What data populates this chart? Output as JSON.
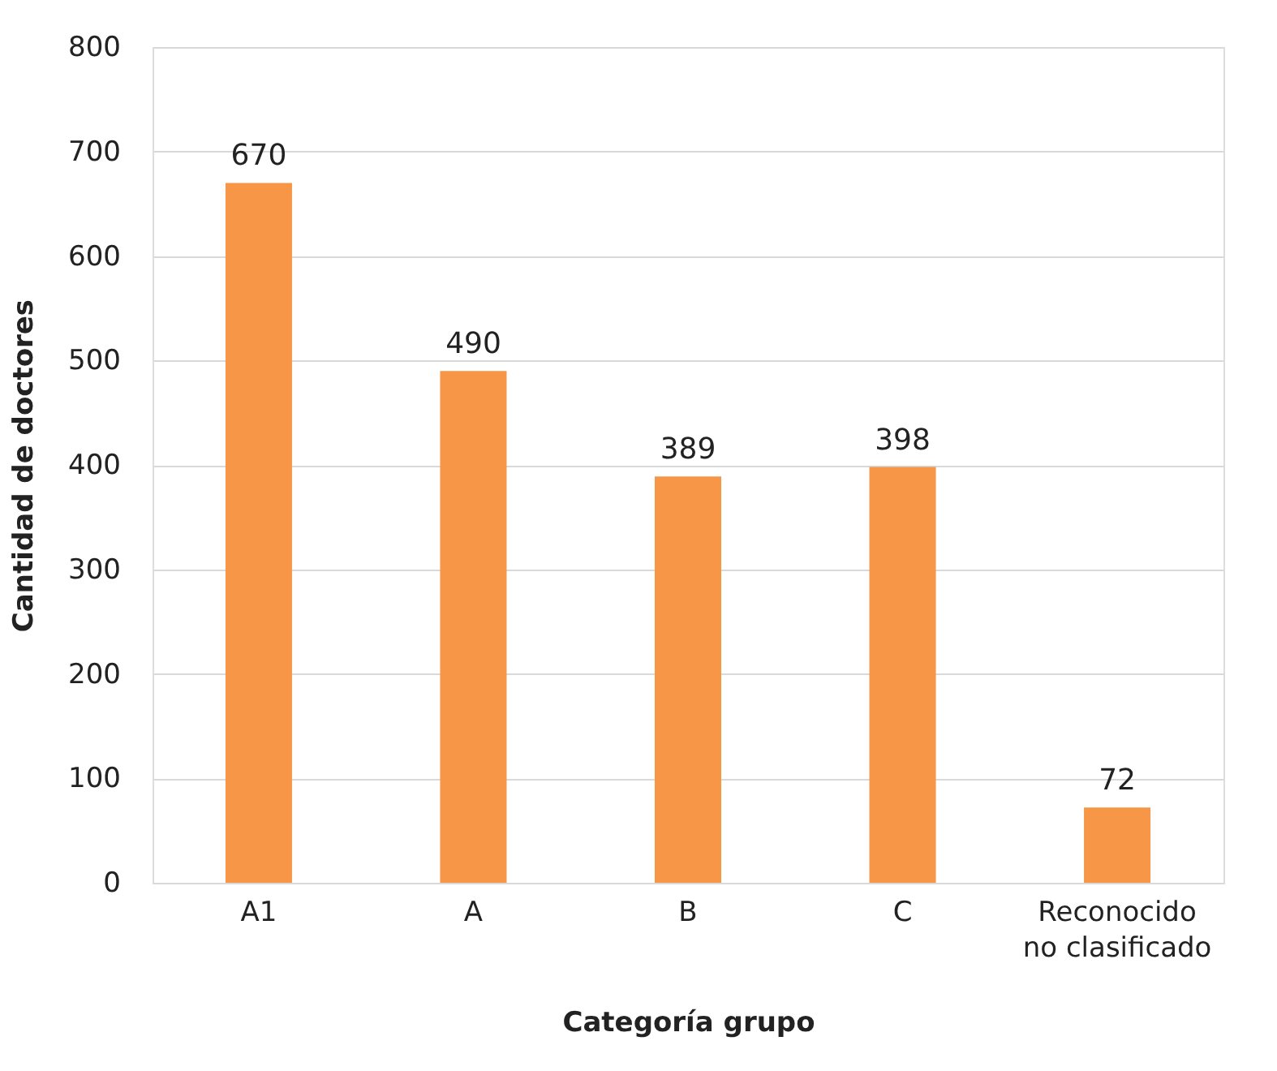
{
  "chart_data": {
    "type": "bar",
    "xlabel": "Categoría grupo",
    "ylabel": "Cantidad de doctores",
    "categories": [
      "A1",
      "A",
      "B",
      "C",
      "Reconocido no clasificado"
    ],
    "values": [
      670,
      490,
      389,
      398,
      72
    ],
    "color": "#f79646",
    "ylim": [
      0,
      800
    ],
    "yticks": [
      0,
      100,
      200,
      300,
      400,
      500,
      600,
      700,
      800
    ],
    "grid": "y",
    "data_labels": true
  }
}
